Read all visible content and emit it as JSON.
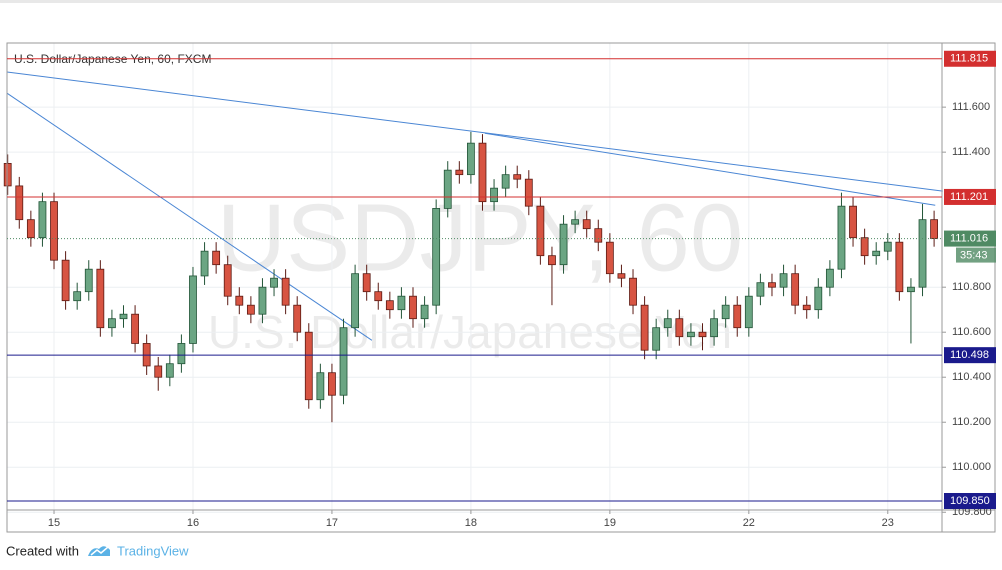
{
  "chart_data": {
    "type": "candlestick",
    "title": "U.S. Dollar/Japanese Yen, 60, FXCM",
    "watermark": "USDJPY, 60",
    "watermark_subtitle": "U.S. Dollar/Japanese Yen",
    "categories": [
      null,
      null,
      null,
      null,
      "15",
      null,
      null,
      null,
      null,
      null,
      null,
      null,
      null,
      null,
      null,
      null,
      "16",
      null,
      null,
      null,
      null,
      null,
      null,
      null,
      null,
      null,
      null,
      null,
      "17",
      null,
      null,
      null,
      null,
      null,
      null,
      null,
      null,
      null,
      null,
      null,
      "18",
      null,
      null,
      null,
      null,
      null,
      null,
      null,
      null,
      null,
      null,
      null,
      "19",
      null,
      null,
      null,
      null,
      null,
      null,
      null,
      null,
      null,
      null,
      null,
      "22",
      null,
      null,
      null,
      null,
      null,
      null,
      null,
      null,
      null,
      null,
      null,
      "23",
      null,
      null,
      null,
      null
    ],
    "open": [
      111.35,
      111.25,
      111.1,
      111.02,
      111.18,
      110.92,
      110.74,
      110.78,
      110.88,
      110.62,
      110.66,
      110.68,
      110.55,
      110.45,
      110.4,
      110.46,
      110.55,
      110.85,
      110.96,
      110.9,
      110.76,
      110.72,
      110.68,
      110.8,
      110.84,
      110.72,
      110.6,
      110.3,
      110.42,
      110.32,
      110.62,
      110.86,
      110.78,
      110.74,
      110.7,
      110.76,
      110.66,
      110.72,
      111.15,
      111.32,
      111.3,
      111.44,
      111.18,
      111.24,
      111.3,
      111.28,
      111.16,
      110.94,
      110.9,
      111.08,
      111.1,
      111.06,
      111.0,
      110.86,
      110.84,
      110.72,
      110.52,
      110.62,
      110.66,
      110.58,
      110.6,
      110.58,
      110.66,
      110.72,
      110.62,
      110.76,
      110.82,
      110.8,
      110.86,
      110.72,
      110.7,
      110.8,
      110.88,
      111.16,
      111.02,
      110.94,
      110.96,
      111.0,
      110.78,
      110.8,
      111.1
    ],
    "high": [
      111.39,
      111.29,
      111.14,
      111.22,
      111.22,
      110.96,
      110.82,
      110.92,
      110.92,
      110.7,
      110.72,
      110.72,
      110.59,
      110.49,
      110.5,
      110.59,
      110.89,
      111.0,
      111.0,
      110.94,
      110.8,
      110.76,
      110.84,
      110.88,
      110.88,
      110.76,
      110.64,
      110.46,
      110.46,
      110.66,
      110.9,
      110.9,
      110.82,
      110.78,
      110.8,
      110.8,
      110.76,
      111.19,
      111.36,
      111.36,
      111.49,
      111.48,
      111.28,
      111.34,
      111.34,
      111.32,
      111.2,
      110.98,
      111.12,
      111.14,
      111.14,
      111.1,
      111.04,
      110.9,
      110.88,
      110.76,
      110.66,
      110.7,
      110.7,
      110.64,
      110.64,
      110.7,
      110.76,
      110.76,
      110.8,
      110.86,
      110.86,
      110.9,
      110.9,
      110.76,
      110.84,
      110.92,
      111.22,
      111.2,
      111.06,
      111.0,
      111.04,
      111.04,
      110.84,
      111.17,
      111.14
    ],
    "low": [
      111.21,
      111.06,
      110.98,
      110.98,
      110.88,
      110.7,
      110.7,
      110.74,
      110.58,
      110.58,
      110.62,
      110.51,
      110.41,
      110.34,
      110.36,
      110.42,
      110.51,
      110.81,
      110.86,
      110.72,
      110.68,
      110.64,
      110.64,
      110.76,
      110.68,
      110.56,
      110.26,
      110.26,
      110.2,
      110.28,
      110.58,
      110.74,
      110.7,
      110.66,
      110.66,
      110.62,
      110.62,
      110.68,
      111.11,
      111.26,
      111.26,
      111.14,
      111.14,
      111.2,
      111.24,
      111.12,
      110.9,
      110.72,
      110.86,
      111.04,
      111.02,
      110.96,
      110.82,
      110.8,
      110.68,
      110.48,
      110.48,
      110.58,
      110.54,
      110.54,
      110.52,
      110.54,
      110.62,
      110.58,
      110.58,
      110.72,
      110.76,
      110.76,
      110.68,
      110.66,
      110.66,
      110.76,
      110.84,
      110.98,
      110.9,
      110.9,
      110.92,
      110.74,
      110.55,
      110.76,
      110.98
    ],
    "close": [
      111.25,
      111.1,
      111.02,
      111.18,
      110.92,
      110.74,
      110.78,
      110.88,
      110.62,
      110.66,
      110.68,
      110.55,
      110.45,
      110.4,
      110.46,
      110.55,
      110.85,
      110.96,
      110.9,
      110.76,
      110.72,
      110.68,
      110.8,
      110.84,
      110.72,
      110.6,
      110.3,
      110.42,
      110.32,
      110.62,
      110.86,
      110.78,
      110.74,
      110.7,
      110.76,
      110.66,
      110.72,
      111.15,
      111.32,
      111.3,
      111.44,
      111.18,
      111.24,
      111.3,
      111.28,
      111.16,
      110.94,
      110.9,
      111.08,
      111.1,
      111.06,
      111.0,
      110.86,
      110.84,
      110.72,
      110.52,
      110.62,
      110.66,
      110.58,
      110.6,
      110.58,
      110.66,
      110.72,
      110.62,
      110.76,
      110.82,
      110.8,
      110.86,
      110.72,
      110.7,
      110.8,
      110.88,
      111.16,
      111.02,
      110.94,
      110.96,
      111.0,
      110.78,
      110.8,
      111.1,
      111.016
    ],
    "up_color": "#6ba583",
    "down_color": "#d75442",
    "ylim": [
      109.81,
      111.885
    ],
    "yticks": [
      {
        "value": 109.8,
        "label": "109.800"
      },
      {
        "value": 110.0,
        "label": "110.000"
      },
      {
        "value": 110.2,
        "label": "110.200"
      },
      {
        "value": 110.4,
        "label": "110.400"
      },
      {
        "value": 110.6,
        "label": "110.600"
      },
      {
        "value": 110.8,
        "label": "110.800"
      },
      {
        "value": 111.4,
        "label": "111.400"
      },
      {
        "value": 111.6,
        "label": "111.600"
      }
    ],
    "grid": true,
    "hlines": [
      {
        "value": 111.815,
        "label": "111.815",
        "color": "#d32f2f"
      },
      {
        "value": 111.201,
        "label": "111.201",
        "color": "#d32f2f"
      },
      {
        "value": 110.498,
        "label": "110.498",
        "color": "#1a1a8c"
      },
      {
        "value": 109.85,
        "label": "109.850",
        "color": "#1a1a8c"
      }
    ],
    "trendlines": [
      {
        "x": [
          -0.06,
          80.75
        ],
        "y": [
          111.756,
          111.227
        ],
        "color": "#4a86d4"
      },
      {
        "x": [
          -0.06,
          31.45
        ],
        "y": [
          111.662,
          110.564
        ],
        "color": "#4a86d4"
      },
      {
        "x": [
          41.2,
          80.1
        ],
        "y": [
          111.484,
          111.164
        ],
        "color": "#4a86d4"
      }
    ],
    "countdown": "35:43",
    "price_color": "#4f8a63"
  },
  "footer": {
    "created_with": "Created with",
    "brand": "TradingView"
  }
}
